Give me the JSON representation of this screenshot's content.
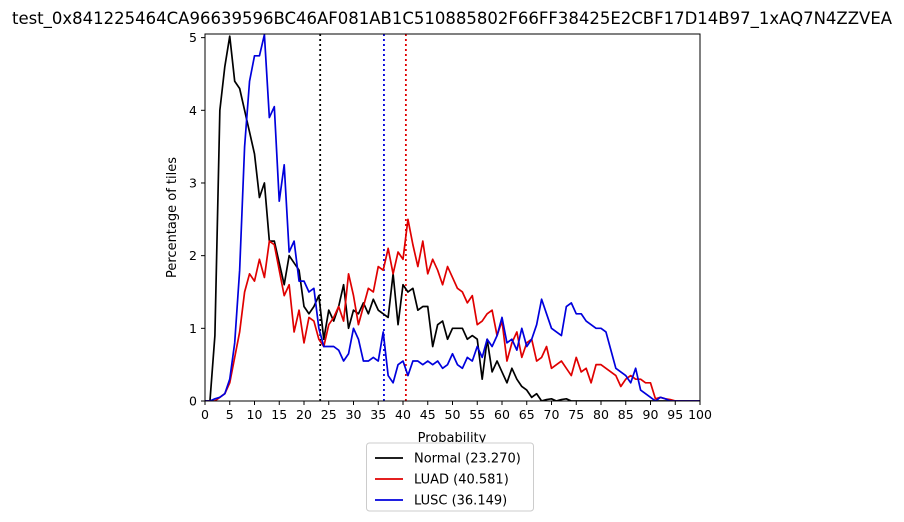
{
  "chart_data": {
    "type": "line",
    "title": "test_0x841225464CA96639596BC46AF081AB1C510885802F66FF38425E2CBF17D14B97_1xAQ7N4ZZVEA",
    "xlabel": "Probability",
    "ylabel": "Percentage of tiles",
    "xlim": [
      0,
      100
    ],
    "ylim": [
      0,
      5.05
    ],
    "x_ticks": [
      0,
      5,
      10,
      15,
      20,
      25,
      30,
      35,
      40,
      45,
      50,
      55,
      60,
      65,
      70,
      75,
      80,
      85,
      90,
      95,
      100
    ],
    "y_ticks": [
      0,
      1,
      2,
      3,
      4,
      5
    ],
    "grid": false,
    "legend_position": "below",
    "series": [
      {
        "name": "Normal (23.270)",
        "color": "#000000",
        "threshold": 23.27,
        "points": [
          [
            0,
            0
          ],
          [
            1,
            0
          ],
          [
            2,
            0.9
          ],
          [
            3,
            4.0
          ],
          [
            4,
            4.6
          ],
          [
            5,
            5.02
          ],
          [
            6,
            4.4
          ],
          [
            7,
            4.3
          ],
          [
            8,
            4.0
          ],
          [
            9,
            3.7
          ],
          [
            10,
            3.4
          ],
          [
            11,
            2.8
          ],
          [
            12,
            3.0
          ],
          [
            13,
            2.2
          ],
          [
            14,
            2.2
          ],
          [
            15,
            1.9
          ],
          [
            16,
            1.6
          ],
          [
            17,
            2.0
          ],
          [
            18,
            1.9
          ],
          [
            19,
            1.8
          ],
          [
            20,
            1.3
          ],
          [
            21,
            1.2
          ],
          [
            22,
            1.3
          ],
          [
            23,
            1.45
          ],
          [
            24,
            0.85
          ],
          [
            25,
            1.25
          ],
          [
            26,
            1.1
          ],
          [
            27,
            1.3
          ],
          [
            28,
            1.6
          ],
          [
            29,
            1.0
          ],
          [
            30,
            1.25
          ],
          [
            31,
            1.2
          ],
          [
            32,
            1.35
          ],
          [
            33,
            1.2
          ],
          [
            34,
            1.4
          ],
          [
            35,
            1.25
          ],
          [
            36,
            1.2
          ],
          [
            37,
            1.15
          ],
          [
            38,
            1.75
          ],
          [
            39,
            1.05
          ],
          [
            40,
            1.6
          ],
          [
            41,
            1.5
          ],
          [
            42,
            1.55
          ],
          [
            43,
            1.25
          ],
          [
            44,
            1.3
          ],
          [
            45,
            1.3
          ],
          [
            46,
            0.75
          ],
          [
            47,
            1.05
          ],
          [
            48,
            1.1
          ],
          [
            49,
            0.85
          ],
          [
            50,
            1.0
          ],
          [
            51,
            1.0
          ],
          [
            52,
            1.0
          ],
          [
            53,
            0.85
          ],
          [
            54,
            0.9
          ],
          [
            55,
            0.85
          ],
          [
            56,
            0.3
          ],
          [
            57,
            0.85
          ],
          [
            58,
            0.4
          ],
          [
            59,
            0.55
          ],
          [
            60,
            0.4
          ],
          [
            61,
            0.25
          ],
          [
            62,
            0.45
          ],
          [
            63,
            0.3
          ],
          [
            64,
            0.2
          ],
          [
            65,
            0.15
          ],
          [
            66,
            0.05
          ],
          [
            67,
            0.1
          ],
          [
            68,
            0.0
          ],
          [
            69,
            0.02
          ],
          [
            70,
            0.03
          ],
          [
            71,
            0.0
          ],
          [
            72,
            0.02
          ],
          [
            73,
            0.03
          ],
          [
            74,
            0.0
          ],
          [
            75,
            0.0
          ],
          [
            80,
            0.0
          ],
          [
            85,
            0.0
          ],
          [
            90,
            0.0
          ],
          [
            95,
            0.0
          ],
          [
            100,
            0.0
          ]
        ]
      },
      {
        "name": "LUAD (40.581)",
        "color": "#e00000",
        "threshold": 40.58,
        "points": [
          [
            0,
            0
          ],
          [
            1,
            0
          ],
          [
            2,
            0
          ],
          [
            3,
            0.05
          ],
          [
            4,
            0.1
          ],
          [
            5,
            0.25
          ],
          [
            6,
            0.6
          ],
          [
            7,
            0.95
          ],
          [
            8,
            1.5
          ],
          [
            9,
            1.75
          ],
          [
            10,
            1.65
          ],
          [
            11,
            1.95
          ],
          [
            12,
            1.7
          ],
          [
            13,
            2.2
          ],
          [
            14,
            2.15
          ],
          [
            15,
            1.8
          ],
          [
            16,
            1.45
          ],
          [
            17,
            1.6
          ],
          [
            18,
            0.95
          ],
          [
            19,
            1.25
          ],
          [
            20,
            0.8
          ],
          [
            21,
            1.15
          ],
          [
            22,
            1.1
          ],
          [
            23,
            0.85
          ],
          [
            24,
            0.75
          ],
          [
            25,
            1.05
          ],
          [
            26,
            1.15
          ],
          [
            27,
            1.3
          ],
          [
            28,
            1.1
          ],
          [
            29,
            1.75
          ],
          [
            30,
            1.45
          ],
          [
            31,
            1.05
          ],
          [
            32,
            1.3
          ],
          [
            33,
            1.55
          ],
          [
            34,
            1.5
          ],
          [
            35,
            1.85
          ],
          [
            36,
            1.8
          ],
          [
            37,
            2.1
          ],
          [
            38,
            1.75
          ],
          [
            39,
            2.05
          ],
          [
            40,
            1.95
          ],
          [
            41,
            2.5
          ],
          [
            42,
            2.15
          ],
          [
            43,
            1.85
          ],
          [
            44,
            2.2
          ],
          [
            45,
            1.75
          ],
          [
            46,
            1.95
          ],
          [
            47,
            1.8
          ],
          [
            48,
            1.6
          ],
          [
            49,
            1.85
          ],
          [
            50,
            1.7
          ],
          [
            51,
            1.55
          ],
          [
            52,
            1.5
          ],
          [
            53,
            1.35
          ],
          [
            54,
            1.45
          ],
          [
            55,
            1.05
          ],
          [
            56,
            1.1
          ],
          [
            57,
            1.2
          ],
          [
            58,
            1.25
          ],
          [
            59,
            0.9
          ],
          [
            60,
            1.1
          ],
          [
            61,
            0.55
          ],
          [
            62,
            0.8
          ],
          [
            63,
            0.95
          ],
          [
            64,
            0.6
          ],
          [
            65,
            0.8
          ],
          [
            66,
            0.85
          ],
          [
            67,
            0.55
          ],
          [
            68,
            0.6
          ],
          [
            69,
            0.75
          ],
          [
            70,
            0.45
          ],
          [
            71,
            0.5
          ],
          [
            72,
            0.55
          ],
          [
            73,
            0.45
          ],
          [
            74,
            0.35
          ],
          [
            75,
            0.6
          ],
          [
            76,
            0.4
          ],
          [
            77,
            0.45
          ],
          [
            78,
            0.25
          ],
          [
            79,
            0.5
          ],
          [
            80,
            0.5
          ],
          [
            81,
            0.45
          ],
          [
            82,
            0.4
          ],
          [
            83,
            0.35
          ],
          [
            84,
            0.2
          ],
          [
            85,
            0.3
          ],
          [
            86,
            0.35
          ],
          [
            87,
            0.3
          ],
          [
            88,
            0.3
          ],
          [
            89,
            0.25
          ],
          [
            90,
            0.25
          ],
          [
            91,
            0.03
          ],
          [
            92,
            0.05
          ],
          [
            93,
            0.03
          ],
          [
            94,
            0.02
          ],
          [
            95,
            0.0
          ],
          [
            100,
            0.0
          ]
        ]
      },
      {
        "name": "LUSC (36.149)",
        "color": "#0000dd",
        "threshold": 36.15,
        "points": [
          [
            0,
            0
          ],
          [
            1,
            0
          ],
          [
            2,
            0.03
          ],
          [
            3,
            0.05
          ],
          [
            4,
            0.1
          ],
          [
            5,
            0.3
          ],
          [
            6,
            0.8
          ],
          [
            7,
            1.8
          ],
          [
            8,
            3.5
          ],
          [
            9,
            4.4
          ],
          [
            10,
            4.75
          ],
          [
            11,
            4.75
          ],
          [
            12,
            5.04
          ],
          [
            13,
            3.9
          ],
          [
            14,
            4.05
          ],
          [
            15,
            2.75
          ],
          [
            16,
            3.25
          ],
          [
            17,
            2.05
          ],
          [
            18,
            2.2
          ],
          [
            19,
            1.65
          ],
          [
            20,
            1.65
          ],
          [
            21,
            1.5
          ],
          [
            22,
            1.55
          ],
          [
            23,
            1.0
          ],
          [
            24,
            0.75
          ],
          [
            25,
            0.75
          ],
          [
            26,
            0.75
          ],
          [
            27,
            0.7
          ],
          [
            28,
            0.55
          ],
          [
            29,
            0.65
          ],
          [
            30,
            1.0
          ],
          [
            31,
            0.85
          ],
          [
            32,
            0.55
          ],
          [
            33,
            0.55
          ],
          [
            34,
            0.6
          ],
          [
            35,
            0.55
          ],
          [
            36,
            0.95
          ],
          [
            37,
            0.35
          ],
          [
            38,
            0.25
          ],
          [
            39,
            0.5
          ],
          [
            40,
            0.55
          ],
          [
            41,
            0.35
          ],
          [
            42,
            0.55
          ],
          [
            43,
            0.55
          ],
          [
            44,
            0.5
          ],
          [
            45,
            0.55
          ],
          [
            46,
            0.5
          ],
          [
            47,
            0.55
          ],
          [
            48,
            0.45
          ],
          [
            49,
            0.5
          ],
          [
            50,
            0.65
          ],
          [
            51,
            0.5
          ],
          [
            52,
            0.45
          ],
          [
            53,
            0.6
          ],
          [
            54,
            0.55
          ],
          [
            55,
            0.75
          ],
          [
            56,
            0.6
          ],
          [
            57,
            0.85
          ],
          [
            58,
            0.75
          ],
          [
            59,
            0.9
          ],
          [
            60,
            1.15
          ],
          [
            61,
            0.8
          ],
          [
            62,
            0.85
          ],
          [
            63,
            0.7
          ],
          [
            64,
            1.0
          ],
          [
            65,
            0.75
          ],
          [
            66,
            0.85
          ],
          [
            67,
            1.05
          ],
          [
            68,
            1.4
          ],
          [
            69,
            1.2
          ],
          [
            70,
            1.0
          ],
          [
            71,
            0.95
          ],
          [
            72,
            0.9
          ],
          [
            73,
            1.3
          ],
          [
            74,
            1.35
          ],
          [
            75,
            1.2
          ],
          [
            76,
            1.2
          ],
          [
            77,
            1.1
          ],
          [
            78,
            1.05
          ],
          [
            79,
            1.0
          ],
          [
            80,
            1.0
          ],
          [
            81,
            0.95
          ],
          [
            82,
            0.7
          ],
          [
            83,
            0.45
          ],
          [
            84,
            0.4
          ],
          [
            85,
            0.35
          ],
          [
            86,
            0.25
          ],
          [
            87,
            0.45
          ],
          [
            88,
            0.15
          ],
          [
            89,
            0.1
          ],
          [
            90,
            0.05
          ],
          [
            91,
            0.0
          ],
          [
            92,
            0.05
          ],
          [
            93,
            0.03
          ],
          [
            94,
            0.0
          ],
          [
            95,
            0.0
          ],
          [
            100,
            0.0
          ]
        ]
      }
    ]
  }
}
